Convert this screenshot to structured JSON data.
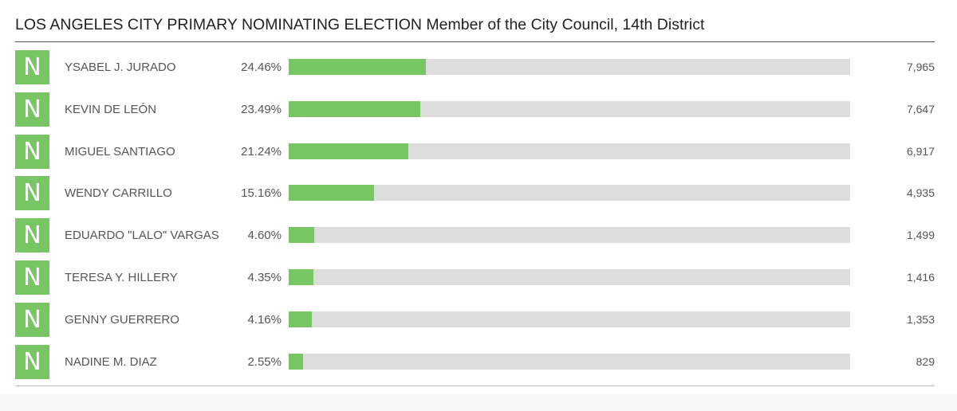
{
  "title": "LOS ANGELES CITY PRIMARY NOMINATING ELECTION Member of the City Council, 14th District",
  "colors": {
    "badge": "#78c564",
    "bar_fill": "#78c564",
    "bar_track": "#dddddd"
  },
  "chart_data": {
    "type": "bar",
    "orientation": "horizontal",
    "title": "LOS ANGELES CITY PRIMARY NOMINATING ELECTION Member of the City Council, 14th District",
    "xlim": [
      0,
      100
    ],
    "rows": [
      {
        "badge": "N",
        "name": "YSABEL J. JURADO",
        "percent_label": "24.46%",
        "percent": 24.46,
        "votes_label": "7,965",
        "votes": 7965
      },
      {
        "badge": "N",
        "name": "KEVIN DE LEÓN",
        "percent_label": "23.49%",
        "percent": 23.49,
        "votes_label": "7,647",
        "votes": 7647
      },
      {
        "badge": "N",
        "name": "MIGUEL SANTIAGO",
        "percent_label": "21.24%",
        "percent": 21.24,
        "votes_label": "6,917",
        "votes": 6917
      },
      {
        "badge": "N",
        "name": "WENDY CARRILLO",
        "percent_label": "15.16%",
        "percent": 15.16,
        "votes_label": "4,935",
        "votes": 4935
      },
      {
        "badge": "N",
        "name": "EDUARDO \"LALO\" VARGAS",
        "percent_label": "4.60%",
        "percent": 4.6,
        "votes_label": "1,499",
        "votes": 1499
      },
      {
        "badge": "N",
        "name": "TERESA Y. HILLERY",
        "percent_label": "4.35%",
        "percent": 4.35,
        "votes_label": "1,416",
        "votes": 1416
      },
      {
        "badge": "N",
        "name": "GENNY GUERRERO",
        "percent_label": "4.16%",
        "percent": 4.16,
        "votes_label": "1,353",
        "votes": 1353
      },
      {
        "badge": "N",
        "name": "NADINE M. DIAZ",
        "percent_label": "2.55%",
        "percent": 2.55,
        "votes_label": "829",
        "votes": 829
      }
    ]
  }
}
